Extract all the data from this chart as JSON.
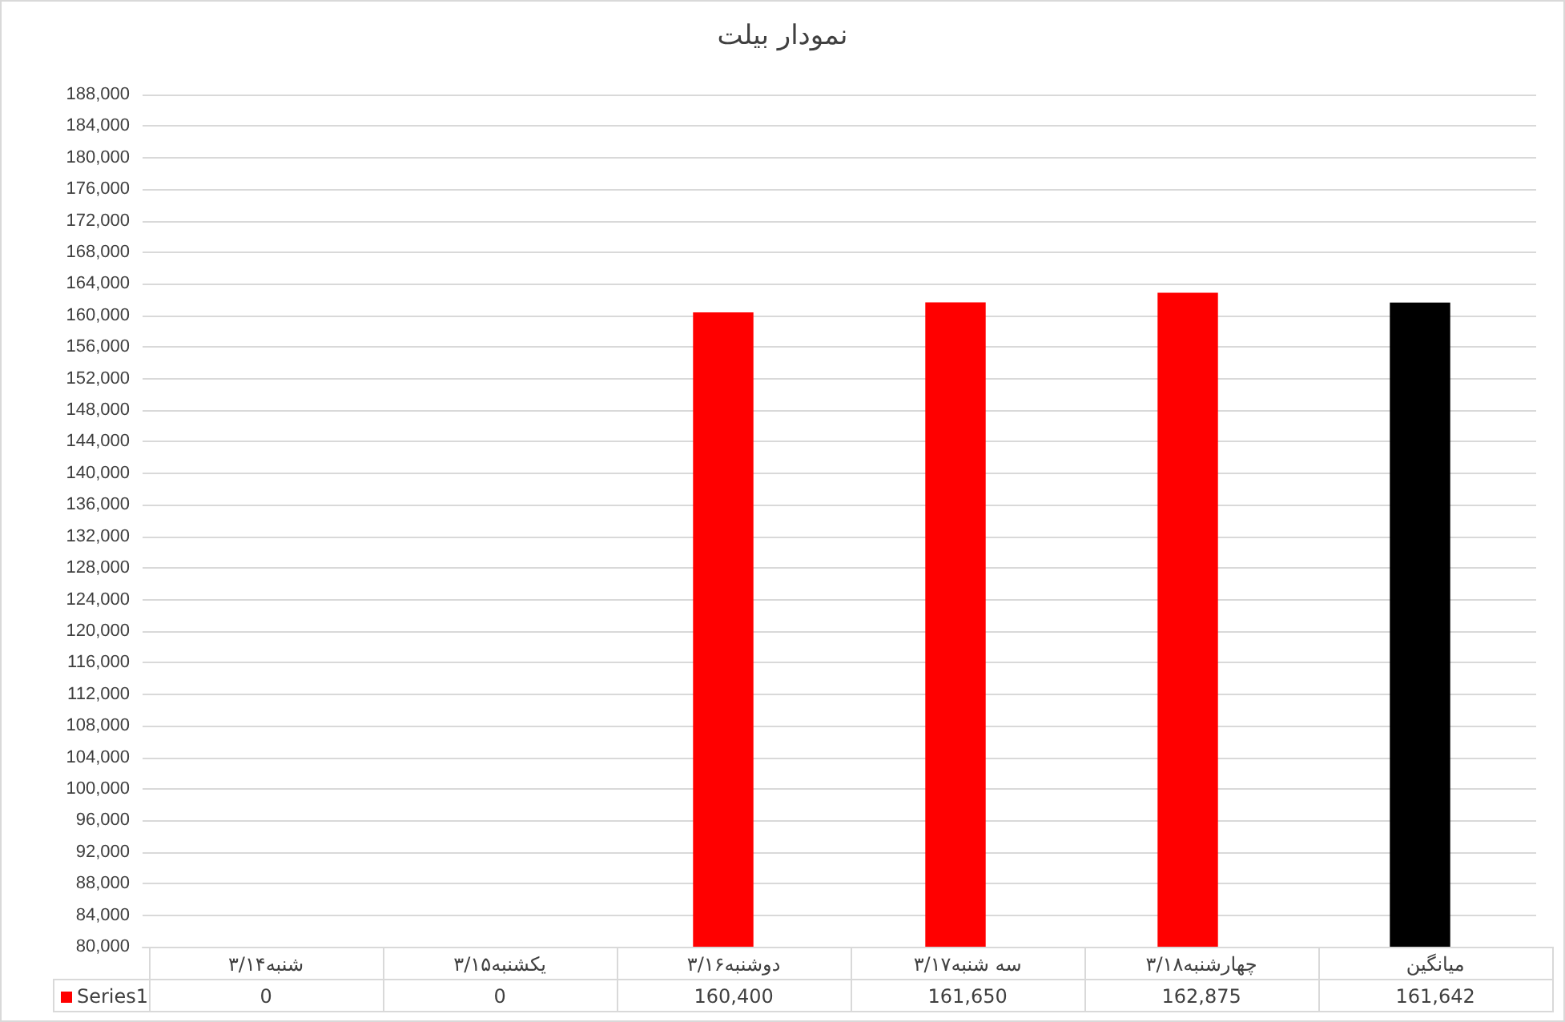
{
  "chart_data": {
    "type": "bar",
    "title": "نمودار بیلت",
    "categories": [
      "شنبه۳/۱۴",
      "یکشنبه۳/۱۵",
      "دوشنبه۳/۱۶",
      "سه شنبه۳/۱۷",
      "چهارشنبه۳/۱۸",
      "میانگین"
    ],
    "series": [
      {
        "name": "Series1",
        "color": "#ff0000",
        "colors": [
          "#ff0000",
          "#ff0000",
          "#ff0000",
          "#ff0000",
          "#ff0000",
          "#000000"
        ],
        "values": [
          null,
          null,
          160400,
          161650,
          162875,
          161642
        ],
        "value_labels": [
          "0",
          "0",
          "160,400",
          "161,650",
          "162,875",
          "161,642"
        ]
      }
    ],
    "ylim": [
      80000,
      188000
    ],
    "yticks": [
      {
        "value": 80000,
        "label": "80,000"
      },
      {
        "value": 84000,
        "label": "84,000"
      },
      {
        "value": 88000,
        "label": "88,000"
      },
      {
        "value": 92000,
        "label": "92,000"
      },
      {
        "value": 96000,
        "label": "96,000"
      },
      {
        "value": 100000,
        "label": "100,000"
      },
      {
        "value": 104000,
        "label": "104,000"
      },
      {
        "value": 108000,
        "label": "108,000"
      },
      {
        "value": 112000,
        "label": "112,000"
      },
      {
        "value": 116000,
        "label": "116,000"
      },
      {
        "value": 120000,
        "label": "120,000"
      },
      {
        "value": 124000,
        "label": "124,000"
      },
      {
        "value": 128000,
        "label": "128,000"
      },
      {
        "value": 132000,
        "label": "132,000"
      },
      {
        "value": 136000,
        "label": "136,000"
      },
      {
        "value": 140000,
        "label": "140,000"
      },
      {
        "value": 144000,
        "label": "144,000"
      },
      {
        "value": 148000,
        "label": "148,000"
      },
      {
        "value": 152000,
        "label": "152,000"
      },
      {
        "value": 156000,
        "label": "156,000"
      },
      {
        "value": 160000,
        "label": "160,000"
      },
      {
        "value": 164000,
        "label": "164,000"
      },
      {
        "value": 168000,
        "label": "168,000"
      },
      {
        "value": 172000,
        "label": "172,000"
      },
      {
        "value": 176000,
        "label": "176,000"
      },
      {
        "value": 180000,
        "label": "180,000"
      },
      {
        "value": 184000,
        "label": "184,000"
      },
      {
        "value": 188000,
        "label": "188,000"
      }
    ],
    "grid": "y",
    "legend": "bottom"
  }
}
